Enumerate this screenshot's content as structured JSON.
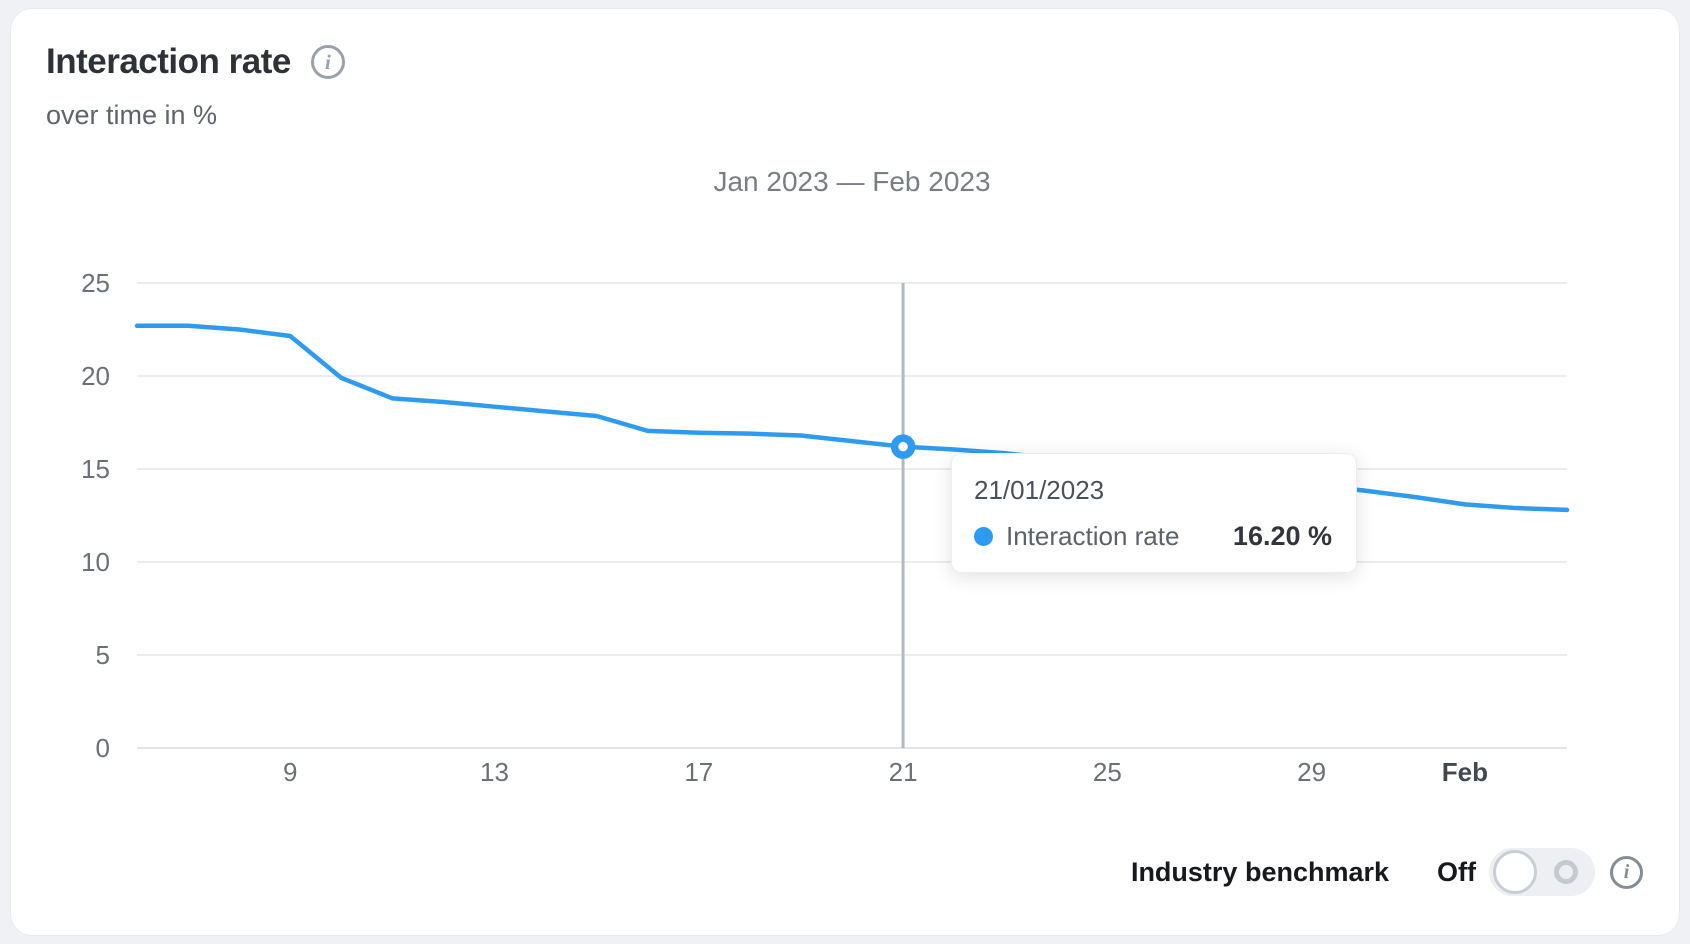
{
  "header": {
    "title": "Interaction rate",
    "subtitle": "over time in %",
    "info_icon_glyph": "i"
  },
  "period_label": "Jan 2023 — Feb 2023",
  "tooltip": {
    "date": "21/01/2023",
    "series": "Interaction rate",
    "value": "16.20 %"
  },
  "benchmark": {
    "label": "Industry benchmark",
    "state": "Off",
    "info_icon_glyph": "i"
  },
  "colors": {
    "line": "#2f9bf0",
    "grid": "#ebecee",
    "baseline": "#e3e4e7",
    "axis_text": "#6b7077",
    "axis_text_bold": "#43474e",
    "crosshair": "#b4b8c0"
  },
  "chart_data": {
    "type": "line",
    "title": "Jan 2023 — Feb 2023",
    "ylabel": "Interaction rate (%)",
    "ylim": [
      0,
      25
    ],
    "grid": true,
    "y_ticks": [
      25,
      20,
      15,
      10,
      5,
      0
    ],
    "x_dates": [
      "06/01/2023",
      "07/01/2023",
      "08/01/2023",
      "09/01/2023",
      "10/01/2023",
      "11/01/2023",
      "12/01/2023",
      "13/01/2023",
      "14/01/2023",
      "15/01/2023",
      "16/01/2023",
      "17/01/2023",
      "18/01/2023",
      "19/01/2023",
      "20/01/2023",
      "21/01/2023",
      "22/01/2023",
      "23/01/2023",
      "24/01/2023",
      "25/01/2023",
      "26/01/2023",
      "27/01/2023",
      "28/01/2023",
      "29/01/2023",
      "30/01/2023",
      "31/01/2023",
      "01/02/2023",
      "02/02/2023",
      "03/02/2023"
    ],
    "x_ticks": [
      {
        "index": 3,
        "label": "9",
        "bold": false
      },
      {
        "index": 7,
        "label": "13",
        "bold": false
      },
      {
        "index": 11,
        "label": "17",
        "bold": false
      },
      {
        "index": 15,
        "label": "21",
        "bold": false
      },
      {
        "index": 19,
        "label": "25",
        "bold": false
      },
      {
        "index": 23,
        "label": "29",
        "bold": false
      },
      {
        "index": 26,
        "label": "Feb",
        "bold": true
      }
    ],
    "series": [
      {
        "name": "Interaction rate",
        "values": [
          22.7,
          22.7,
          22.5,
          22.15,
          19.9,
          18.8,
          18.6,
          18.35,
          18.1,
          17.85,
          17.05,
          16.95,
          16.9,
          16.8,
          16.5,
          16.2,
          16.05,
          15.85,
          15.55,
          15.25,
          14.95,
          14.65,
          14.35,
          14.1,
          13.85,
          13.5,
          13.1,
          12.9,
          12.8
        ]
      }
    ],
    "highlight": {
      "index": 15,
      "date": "21/01/2023",
      "value": 16.2
    }
  }
}
